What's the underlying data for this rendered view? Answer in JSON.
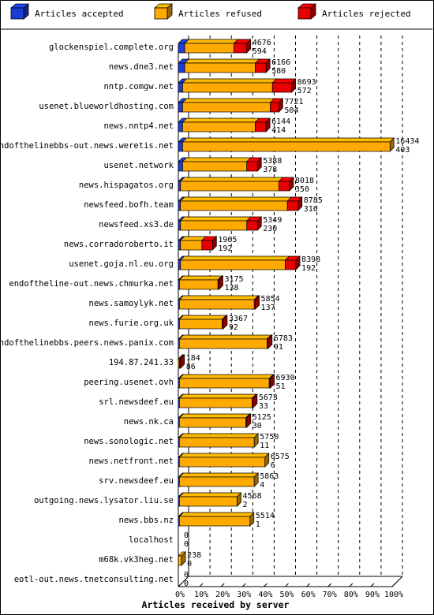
{
  "chart_data": {
    "type": "bar",
    "stacked": true,
    "orientation": "horizontal",
    "xlabel": "Articles received by server",
    "x_ticks": [
      "0%",
      "10%",
      "20%",
      "30%",
      "40%",
      "50%",
      "60%",
      "70%",
      "80%",
      "90%",
      "100%"
    ],
    "xlim": [
      0,
      100
    ],
    "legend_position": "top",
    "grid": "vertical dashed",
    "series": [
      {
        "name": "Articles accepted",
        "color": "#1c3cd8"
      },
      {
        "name": "Articles refused",
        "color": "#ffaa00"
      },
      {
        "name": "Articles rejected",
        "color": "#e80000"
      }
    ],
    "rows": [
      {
        "server": "glockenspiel.complete.org",
        "accepted_pct": 3,
        "refused_pct": 23,
        "rejected_pct": 6,
        "label_total": "4676",
        "label_rejected": "594"
      },
      {
        "server": "news.dne3.net",
        "accepted_pct": 3,
        "refused_pct": 33,
        "rejected_pct": 5,
        "label_total": "6166",
        "label_rejected": "580"
      },
      {
        "server": "nntp.comgw.net",
        "accepted_pct": 2,
        "refused_pct": 42,
        "rejected_pct": 9,
        "label_total": "8693",
        "label_rejected": "572"
      },
      {
        "server": "usenet.blueworldhosting.com",
        "accepted_pct": 2,
        "refused_pct": 41,
        "rejected_pct": 4,
        "label_total": "7721",
        "label_rejected": "504"
      },
      {
        "server": "news.nntp4.net",
        "accepted_pct": 2,
        "refused_pct": 34,
        "rejected_pct": 5,
        "label_total": "6144",
        "label_rejected": "414"
      },
      {
        "server": "endofthelinebbs-out.news.weretis.net",
        "accepted_pct": 2,
        "refused_pct": 97,
        "rejected_pct": 0,
        "label_total": "16434",
        "label_rejected": "403"
      },
      {
        "server": "usenet.network",
        "accepted_pct": 2,
        "refused_pct": 30,
        "rejected_pct": 5,
        "label_total": "5388",
        "label_rejected": "378"
      },
      {
        "server": "news.hispagatos.org",
        "accepted_pct": 1,
        "refused_pct": 46,
        "rejected_pct": 5,
        "label_total": "8018",
        "label_rejected": "350"
      },
      {
        "server": "newsfeed.bofh.team",
        "accepted_pct": 1,
        "refused_pct": 50,
        "rejected_pct": 5,
        "label_total": "8785",
        "label_rejected": "316"
      },
      {
        "server": "newsfeed.xs3.de",
        "accepted_pct": 1,
        "refused_pct": 31,
        "rejected_pct": 5,
        "label_total": "5349",
        "label_rejected": "230"
      },
      {
        "server": "news.corradoroberto.it",
        "accepted_pct": 1,
        "refused_pct": 10,
        "rejected_pct": 5,
        "label_total": "1965",
        "label_rejected": "192"
      },
      {
        "server": "usenet.goja.nl.eu.org",
        "accepted_pct": 1,
        "refused_pct": 49,
        "rejected_pct": 5,
        "label_total": "8398",
        "label_rejected": "192"
      },
      {
        "server": "endoftheline-out.news.chmurka.net",
        "accepted_pct": 0.5,
        "refused_pct": 18,
        "rejected_pct": 0.5,
        "label_total": "3175",
        "label_rejected": "138"
      },
      {
        "server": "news.samoylyk.net",
        "accepted_pct": 0.5,
        "refused_pct": 35,
        "rejected_pct": 0.5,
        "label_total": "5854",
        "label_rejected": "137"
      },
      {
        "server": "news.furie.org.uk",
        "accepted_pct": 0.5,
        "refused_pct": 20,
        "rejected_pct": 0.5,
        "label_total": "3367",
        "label_rejected": "92"
      },
      {
        "server": "endofthelinebbs.peers.news.panix.com",
        "accepted_pct": 0.5,
        "refused_pct": 41,
        "rejected_pct": 0.5,
        "label_total": "6783",
        "label_rejected": "91"
      },
      {
        "server": "194.87.241.33",
        "accepted_pct": 0,
        "refused_pct": 0.5,
        "rejected_pct": 0.5,
        "label_total": "184",
        "label_rejected": "86"
      },
      {
        "server": "peering.usenet.ovh",
        "accepted_pct": 0.5,
        "refused_pct": 42,
        "rejected_pct": 0.5,
        "label_total": "6930",
        "label_rejected": "51"
      },
      {
        "server": "srl.newsdeef.eu",
        "accepted_pct": 0.5,
        "refused_pct": 34,
        "rejected_pct": 0.5,
        "label_total": "5673",
        "label_rejected": "33"
      },
      {
        "server": "news.nk.ca",
        "accepted_pct": 0.5,
        "refused_pct": 31,
        "rejected_pct": 0.5,
        "label_total": "5125",
        "label_rejected": "30"
      },
      {
        "server": "news.sonologic.net",
        "accepted_pct": 0.5,
        "refused_pct": 35,
        "rejected_pct": 0,
        "label_total": "5750",
        "label_rejected": "11"
      },
      {
        "server": "news.netfront.net",
        "accepted_pct": 0.5,
        "refused_pct": 40,
        "rejected_pct": 0,
        "label_total": "6575",
        "label_rejected": "6"
      },
      {
        "server": "srv.newsdeef.eu",
        "accepted_pct": 0.5,
        "refused_pct": 35,
        "rejected_pct": 0,
        "label_total": "5863",
        "label_rejected": "4"
      },
      {
        "server": "outgoing.news.lysator.liu.se",
        "accepted_pct": 0.5,
        "refused_pct": 27,
        "rejected_pct": 0,
        "label_total": "4568",
        "label_rejected": "2"
      },
      {
        "server": "news.bbs.nz",
        "accepted_pct": 0.5,
        "refused_pct": 33,
        "rejected_pct": 0,
        "label_total": "5514",
        "label_rejected": "1"
      },
      {
        "server": "localhost",
        "accepted_pct": 0,
        "refused_pct": 0,
        "rejected_pct": 0,
        "label_total": "0",
        "label_rejected": "0"
      },
      {
        "server": "m68k.vk3heg.net",
        "accepted_pct": 0,
        "refused_pct": 1.5,
        "rejected_pct": 0,
        "label_total": "238",
        "label_rejected": "0"
      },
      {
        "server": "eotl-out.news.tnetconsulting.net",
        "accepted_pct": 0,
        "refused_pct": 0,
        "rejected_pct": 0,
        "label_total": "0",
        "label_rejected": "0"
      }
    ]
  }
}
